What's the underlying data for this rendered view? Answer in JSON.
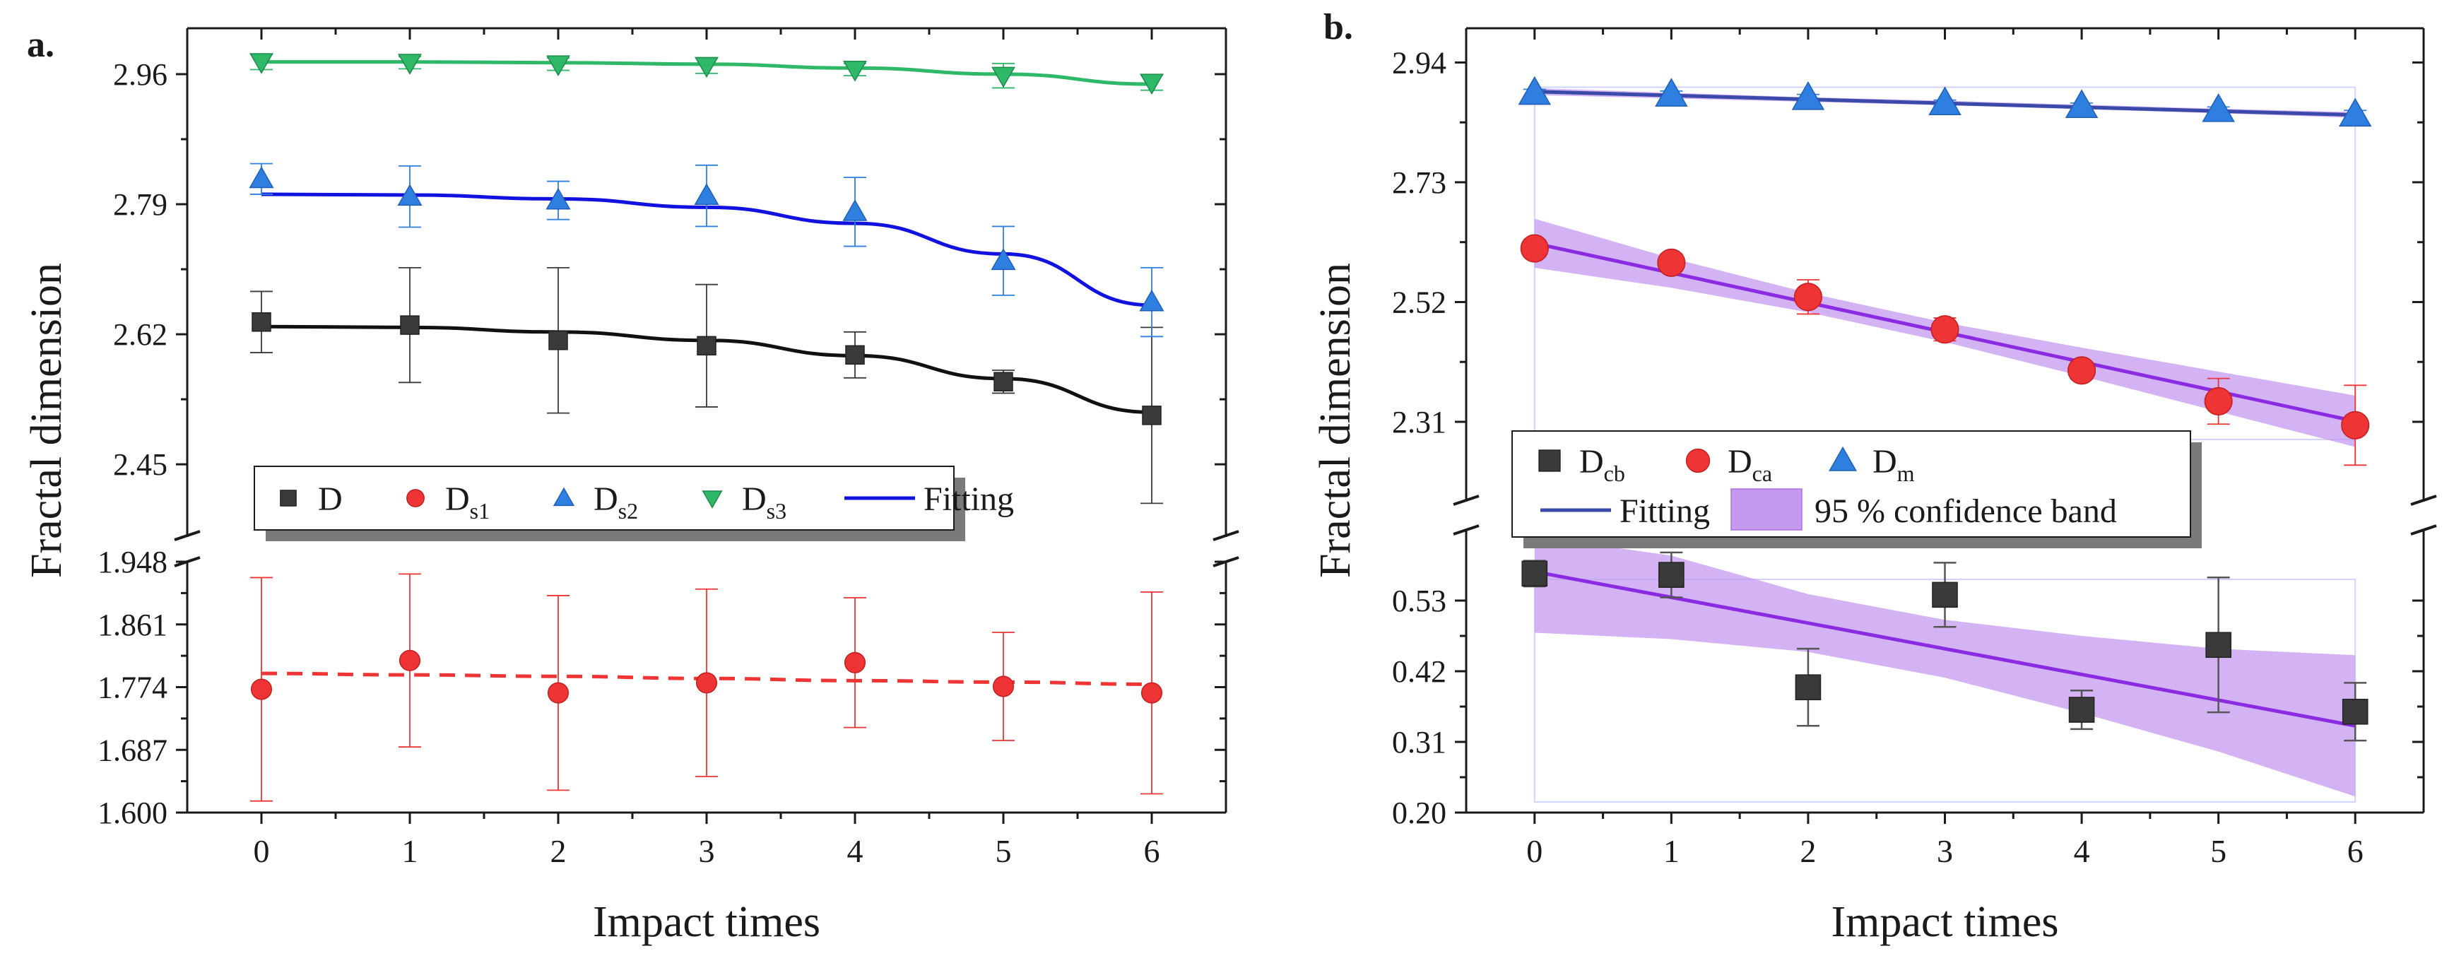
{
  "chart_data": [
    {
      "panel": "a.",
      "type": "scatter",
      "xlabel": "Impact times",
      "ylabel": "Fractal dimension",
      "x": [
        0,
        1,
        2,
        3,
        4,
        5,
        6
      ],
      "xticks": [
        "0",
        "1",
        "2",
        "3",
        "4",
        "5",
        "6"
      ],
      "xlim": [
        -0.5,
        6.5
      ],
      "axis_break": true,
      "upper_yticks": [
        "2.45",
        "2.62",
        "2.79",
        "2.96"
      ],
      "upper_ylim": [
        2.355,
        3.02
      ],
      "lower_yticks": [
        "1.600",
        "1.687",
        "1.774",
        "1.861",
        "1.948"
      ],
      "lower_ylim": [
        1.6,
        1.948
      ],
      "legend": {
        "position": "lower-middle",
        "entries": [
          {
            "label": "D",
            "sub": "",
            "marker": "square",
            "color": "#3a3a3a"
          },
          {
            "label": "D",
            "sub": "s1",
            "marker": "circle",
            "color": "#ee3434"
          },
          {
            "label": "D",
            "sub": "s2",
            "marker": "triangle-up",
            "color": "#2f7fe0"
          },
          {
            "label": "D",
            "sub": "s3",
            "marker": "triangle-down",
            "color": "#2fb868"
          },
          {
            "label": "Fitting",
            "sub": "",
            "marker": "line",
            "color": "#1212e0"
          }
        ]
      },
      "series": [
        {
          "name": "D",
          "marker": "square",
          "color": "#3a3a3a",
          "fit_color": "#111111",
          "fit_style": "solid",
          "segment": "upper",
          "values": [
            2.636,
            2.632,
            2.612,
            2.605,
            2.593,
            2.558,
            2.514
          ],
          "errors": [
            0.04,
            0.075,
            0.095,
            0.08,
            0.03,
            0.015,
            0.115
          ],
          "fit": [
            2.63,
            2.629,
            2.623,
            2.612,
            2.592,
            2.562,
            2.518
          ]
        },
        {
          "name": "Ds2",
          "marker": "triangle-up",
          "color": "#2f7fe0",
          "fit_color": "#1212e0",
          "fit_style": "solid",
          "segment": "upper",
          "values": [
            2.823,
            2.8,
            2.795,
            2.801,
            2.78,
            2.716,
            2.662
          ],
          "errors": [
            0.02,
            0.04,
            0.025,
            0.04,
            0.045,
            0.045,
            0.045
          ],
          "fit": [
            2.803,
            2.802,
            2.797,
            2.786,
            2.765,
            2.725,
            2.658
          ]
        },
        {
          "name": "Ds3",
          "marker": "triangle-down",
          "color": "#2fb868",
          "fit_color": "#2fb868",
          "fit_style": "solid",
          "segment": "upper",
          "values": [
            2.976,
            2.975,
            2.973,
            2.971,
            2.966,
            2.958,
            2.949
          ],
          "errors": [
            0.01,
            0.008,
            0.008,
            0.01,
            0.008,
            0.016,
            0.01
          ],
          "fit": [
            2.976,
            2.976,
            2.975,
            2.973,
            2.968,
            2.96,
            2.947
          ]
        },
        {
          "name": "Ds1",
          "marker": "circle",
          "color": "#ee3434",
          "fit_color": "#ee3434",
          "fit_style": "dashed",
          "segment": "lower",
          "values": [
            1.771,
            1.811,
            1.766,
            1.78,
            1.808,
            1.775,
            1.766
          ],
          "errors": [
            0.155,
            0.12,
            0.135,
            0.13,
            0.09,
            0.075,
            0.14
          ],
          "fit": [
            1.793,
            1.791,
            1.789,
            1.786,
            1.783,
            1.781,
            1.778
          ]
        }
      ]
    },
    {
      "panel": "b.",
      "type": "scatter",
      "xlabel": "Impact times",
      "ylabel": "Fractal dimension",
      "x": [
        0,
        1,
        2,
        3,
        4,
        5,
        6
      ],
      "xticks": [
        "0",
        "1",
        "2",
        "3",
        "4",
        "5",
        "6"
      ],
      "xlim": [
        -0.5,
        6.5
      ],
      "axis_break": true,
      "upper_yticks": [
        "2.31",
        "2.52",
        "2.73",
        "2.94"
      ],
      "upper_ylim": [
        2.17,
        3.0
      ],
      "lower_yticks": [
        "0.20",
        "0.31",
        "0.42",
        "0.53"
      ],
      "lower_ylim": [
        0.2,
        0.64
      ],
      "legend": {
        "position": "middle-left",
        "entries": [
          {
            "label": "D",
            "sub": "cb",
            "marker": "square",
            "color": "#3a3a3a"
          },
          {
            "label": "D",
            "sub": "ca",
            "marker": "circle",
            "color": "#ee3434"
          },
          {
            "label": "D",
            "sub": "m",
            "marker": "triangle-up",
            "color": "#2f7fe0"
          },
          {
            "label": "Fitting",
            "sub": "",
            "marker": "line",
            "color": "#3a4aa8"
          },
          {
            "label": "95 % confidence band",
            "sub": "",
            "marker": "band",
            "color": "#c8a0f0"
          }
        ]
      },
      "series": [
        {
          "name": "Dm",
          "marker": "triangle-up",
          "color": "#2f7fe0",
          "fit_color": "#3a4aa8",
          "segment": "upper",
          "values": [
            2.887,
            2.884,
            2.878,
            2.869,
            2.864,
            2.857,
            2.849
          ],
          "errors": [
            0.006,
            0.006,
            0.006,
            0.005,
            0.005,
            0.005,
            0.007
          ],
          "fit": [
            2.889,
            2.882,
            2.875,
            2.869,
            2.862,
            2.855,
            2.848
          ],
          "band_lower": [
            2.883,
            2.877,
            2.871,
            2.865,
            2.858,
            2.851,
            2.843
          ],
          "band_upper": [
            2.895,
            2.887,
            2.879,
            2.873,
            2.866,
            2.859,
            2.853
          ]
        },
        {
          "name": "Dca",
          "marker": "circle",
          "color": "#ee3434",
          "fit_color": "#8a2be2",
          "segment": "upper",
          "values": [
            2.614,
            2.589,
            2.529,
            2.472,
            2.4,
            2.346,
            2.304
          ],
          "errors": [
            0.015,
            0.015,
            0.03,
            0.02,
            0.015,
            0.04,
            0.07
          ],
          "fit": [
            2.623,
            2.571,
            2.519,
            2.467,
            2.415,
            2.363,
            2.311
          ],
          "band_lower": [
            2.58,
            2.545,
            2.502,
            2.45,
            2.39,
            2.328,
            2.266
          ],
          "band_upper": [
            2.666,
            2.597,
            2.536,
            2.484,
            2.44,
            2.398,
            2.356
          ]
        },
        {
          "name": "Dcb",
          "marker": "square",
          "color": "#3a3a3a",
          "fit_color": "#8a2be2",
          "segment": "lower",
          "values": [
            0.572,
            0.57,
            0.395,
            0.539,
            0.36,
            0.461,
            0.357
          ],
          "errors": [
            0.02,
            0.035,
            0.06,
            0.05,
            0.03,
            0.105,
            0.045
          ],
          "fit": [
            0.575,
            0.535,
            0.495,
            0.455,
            0.415,
            0.375,
            0.335
          ],
          "band_lower": [
            0.48,
            0.47,
            0.45,
            0.41,
            0.355,
            0.295,
            0.225
          ],
          "band_upper": [
            0.63,
            0.6,
            0.54,
            0.5,
            0.475,
            0.455,
            0.445
          ]
        }
      ]
    }
  ]
}
